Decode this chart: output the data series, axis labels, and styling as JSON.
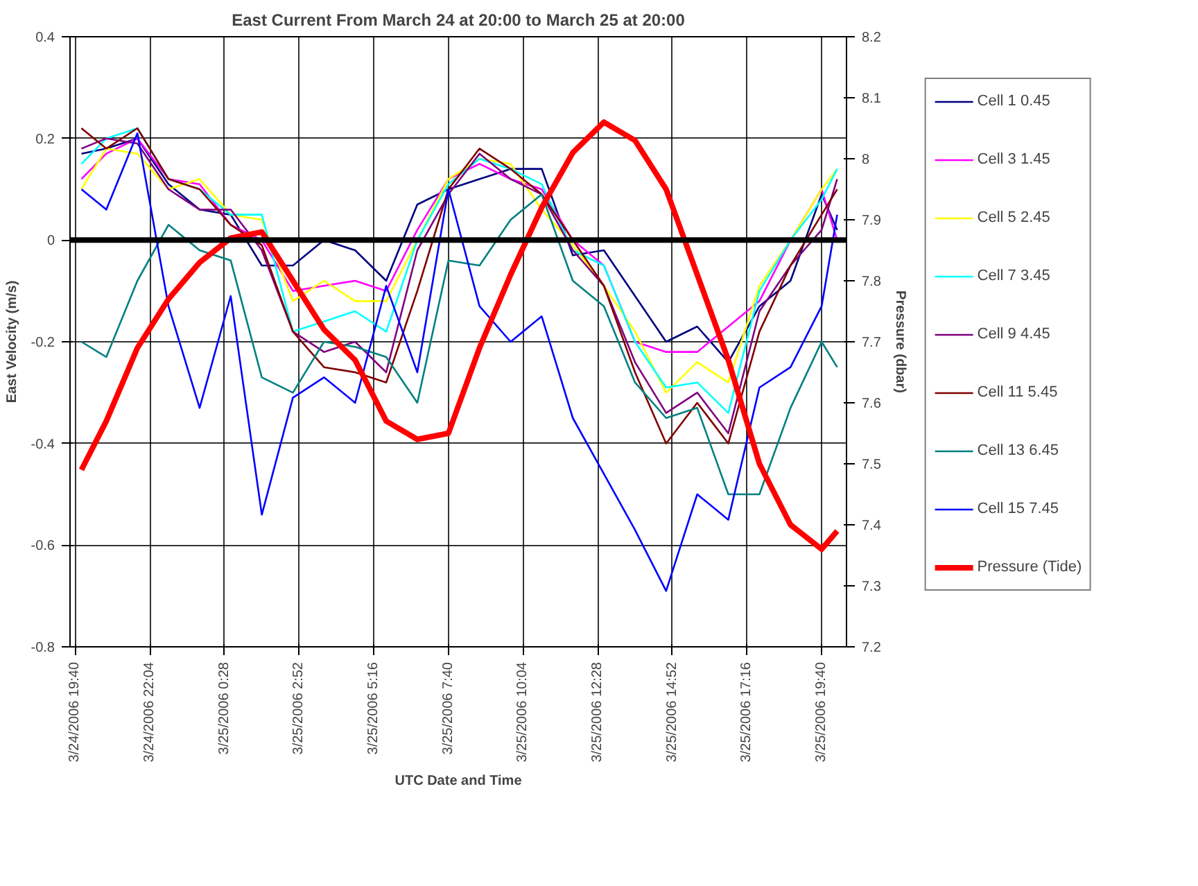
{
  "chart_data": {
    "type": "line",
    "title": "East Current From March 24 at 20:00 to March 25 at 20:00",
    "xlabel": "UTC Date and Time",
    "ylabel": "East Velocity (m/s)",
    "y2label": "Pressure (dbar)",
    "x": [
      "2006-03-24T19:52",
      "2006-03-24T20:40",
      "2006-03-24T21:40",
      "2006-03-24T22:40",
      "2006-03-24T23:40",
      "2006-03-25T00:40",
      "2006-03-25T01:40",
      "2006-03-25T02:40",
      "2006-03-25T03:40",
      "2006-03-25T04:40",
      "2006-03-25T05:40",
      "2006-03-25T06:40",
      "2006-03-25T07:40",
      "2006-03-25T08:40",
      "2006-03-25T09:40",
      "2006-03-25T10:40",
      "2006-03-25T11:40",
      "2006-03-25T12:40",
      "2006-03-25T13:40",
      "2006-03-25T14:40",
      "2006-03-25T15:40",
      "2006-03-25T16:40",
      "2006-03-25T17:40",
      "2006-03-25T18:40",
      "2006-03-25T19:40",
      "2006-03-25T20:10"
    ],
    "xlim": [
      "2006-03-24T19:30",
      "2006-03-25T20:28"
    ],
    "xticks": [
      {
        "value": "2006-03-24T19:40",
        "label": "3/24/2006 19:40"
      },
      {
        "value": "2006-03-24T22:04",
        "label": "3/24/2006 22:04"
      },
      {
        "value": "2006-03-25T00:28",
        "label": "3/25/2006 0:28"
      },
      {
        "value": "2006-03-25T02:52",
        "label": "3/25/2006 2:52"
      },
      {
        "value": "2006-03-25T05:16",
        "label": "3/25/2006 5:16"
      },
      {
        "value": "2006-03-25T07:40",
        "label": "3/25/2006 7:40"
      },
      {
        "value": "2006-03-25T10:04",
        "label": "3/25/2006 10:04"
      },
      {
        "value": "2006-03-25T12:28",
        "label": "3/25/2006 12:28"
      },
      {
        "value": "2006-03-25T14:52",
        "label": "3/25/2006 14:52"
      },
      {
        "value": "2006-03-25T17:16",
        "label": "3/25/2006 17:16"
      },
      {
        "value": "2006-03-25T19:40",
        "label": "3/25/2006 19:40"
      }
    ],
    "ylim": [
      -0.8,
      0.4
    ],
    "yticks": [
      -0.8,
      -0.6,
      -0.4,
      -0.2,
      0,
      0.2,
      0.4
    ],
    "y2lim": [
      7.2,
      8.2
    ],
    "y2ticks": [
      7.2,
      7.3,
      7.4,
      7.5,
      7.6,
      7.7,
      7.8,
      7.9,
      8,
      8.1,
      8.2
    ],
    "grid": true,
    "legend": "right",
    "marker": "none",
    "line_style": "solid",
    "ref_lines": [
      {
        "axis": "y",
        "value": 0,
        "color": "#000000"
      }
    ],
    "series": [
      {
        "name": "Cell 1 0.45",
        "color": "#000080",
        "values": [
          0.17,
          0.18,
          0.2,
          0.11,
          0.06,
          0.05,
          -0.05,
          -0.05,
          0.0,
          -0.02,
          -0.08,
          0.07,
          0.1,
          0.12,
          0.14,
          0.14,
          -0.03,
          -0.02,
          -0.11,
          -0.2,
          -0.17,
          -0.24,
          -0.13,
          -0.08,
          0.09,
          0.02
        ]
      },
      {
        "name": "Cell 3 1.45",
        "color": "#ff00ff",
        "values": [
          0.12,
          0.17,
          0.2,
          0.12,
          0.11,
          0.03,
          0.0,
          -0.1,
          -0.09,
          -0.08,
          -0.1,
          0.02,
          0.12,
          0.15,
          0.12,
          0.1,
          0.0,
          -0.05,
          -0.2,
          -0.22,
          -0.22,
          -0.17,
          -0.12,
          0.0,
          0.1,
          0.0
        ]
      },
      {
        "name": "Cell 5 2.45",
        "color": "#ffff00",
        "values": [
          0.1,
          0.18,
          0.17,
          0.1,
          0.12,
          0.05,
          0.04,
          -0.12,
          -0.08,
          -0.12,
          -0.12,
          0.0,
          0.12,
          0.16,
          0.15,
          0.06,
          -0.01,
          -0.09,
          -0.18,
          -0.3,
          -0.24,
          -0.28,
          -0.09,
          0.0,
          0.1,
          0.14
        ]
      },
      {
        "name": "Cell 7 3.45",
        "color": "#00ffff",
        "values": [
          0.15,
          0.2,
          0.22,
          0.12,
          0.1,
          0.05,
          0.05,
          -0.18,
          -0.16,
          -0.14,
          -0.18,
          0.0,
          0.11,
          0.16,
          0.14,
          0.11,
          -0.02,
          -0.05,
          -0.2,
          -0.29,
          -0.28,
          -0.34,
          -0.1,
          0.0,
          0.08,
          0.14
        ]
      },
      {
        "name": "Cell 9 4.45",
        "color": "#800080",
        "values": [
          0.18,
          0.2,
          0.19,
          0.1,
          0.06,
          0.06,
          -0.02,
          -0.18,
          -0.22,
          -0.2,
          -0.26,
          -0.02,
          0.09,
          0.17,
          0.12,
          0.09,
          -0.02,
          -0.09,
          -0.24,
          -0.34,
          -0.3,
          -0.38,
          -0.14,
          -0.05,
          0.02,
          0.12
        ]
      },
      {
        "name": "Cell 11 5.45",
        "color": "#800000",
        "values": [
          0.22,
          0.18,
          0.22,
          0.12,
          0.1,
          0.03,
          -0.01,
          -0.18,
          -0.25,
          -0.26,
          -0.28,
          -0.1,
          0.1,
          0.18,
          0.14,
          0.09,
          0.0,
          -0.09,
          -0.26,
          -0.4,
          -0.32,
          -0.4,
          -0.18,
          -0.05,
          0.05,
          0.1
        ]
      },
      {
        "name": "Cell 13 6.45",
        "color": "#008080",
        "values": [
          -0.2,
          -0.23,
          -0.08,
          0.03,
          -0.02,
          -0.04,
          -0.27,
          -0.3,
          -0.2,
          -0.21,
          -0.23,
          -0.32,
          -0.04,
          -0.05,
          0.04,
          0.09,
          -0.08,
          -0.13,
          -0.28,
          -0.35,
          -0.33,
          -0.5,
          -0.5,
          -0.33,
          -0.2,
          -0.25
        ]
      },
      {
        "name": "Cell 15 7.45",
        "color": "#0000ff",
        "values": [
          0.1,
          0.06,
          0.21,
          -0.13,
          -0.33,
          -0.11,
          -0.54,
          -0.31,
          -0.27,
          -0.32,
          -0.09,
          -0.26,
          0.1,
          -0.13,
          -0.2,
          -0.15,
          -0.35,
          -0.46,
          -0.57,
          -0.69,
          -0.5,
          -0.55,
          -0.29,
          -0.25,
          -0.13,
          0.05
        ]
      },
      {
        "name": "Pressure (Tide)",
        "color": "#ff0000",
        "axis": "y2",
        "values": [
          7.49,
          7.57,
          7.69,
          7.77,
          7.83,
          7.87,
          7.88,
          7.8,
          7.72,
          7.67,
          7.57,
          7.54,
          7.55,
          7.69,
          7.81,
          7.92,
          8.01,
          8.06,
          8.03,
          7.95,
          7.81,
          7.67,
          7.5,
          7.4,
          7.36,
          7.39
        ]
      }
    ]
  }
}
